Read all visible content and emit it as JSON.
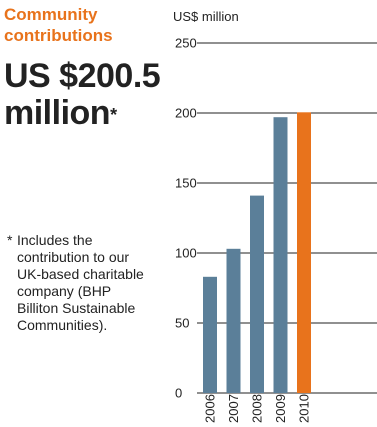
{
  "panel": {
    "title": "Community contributions",
    "headline_main": "US $200.5 million",
    "headline_mark": "*",
    "footnote_mark": "*",
    "footnote": "Includes the contribution to our UK-based charitable company (BHP Billiton Sustainable Communities)."
  },
  "chart_data": {
    "type": "bar",
    "title": "",
    "unit_label": "US$ million",
    "xlabel": "",
    "ylabel": "",
    "ylim": [
      0,
      250
    ],
    "yticks": [
      0,
      50,
      100,
      150,
      200,
      250
    ],
    "grid": true,
    "categories": [
      "2006",
      "2007",
      "2008",
      "2009",
      "2010"
    ],
    "values": [
      83,
      103,
      141,
      197,
      200.5
    ],
    "colors": [
      "#5b7f99",
      "#5b7f99",
      "#5b7f99",
      "#5b7f99",
      "#e8731c"
    ]
  }
}
